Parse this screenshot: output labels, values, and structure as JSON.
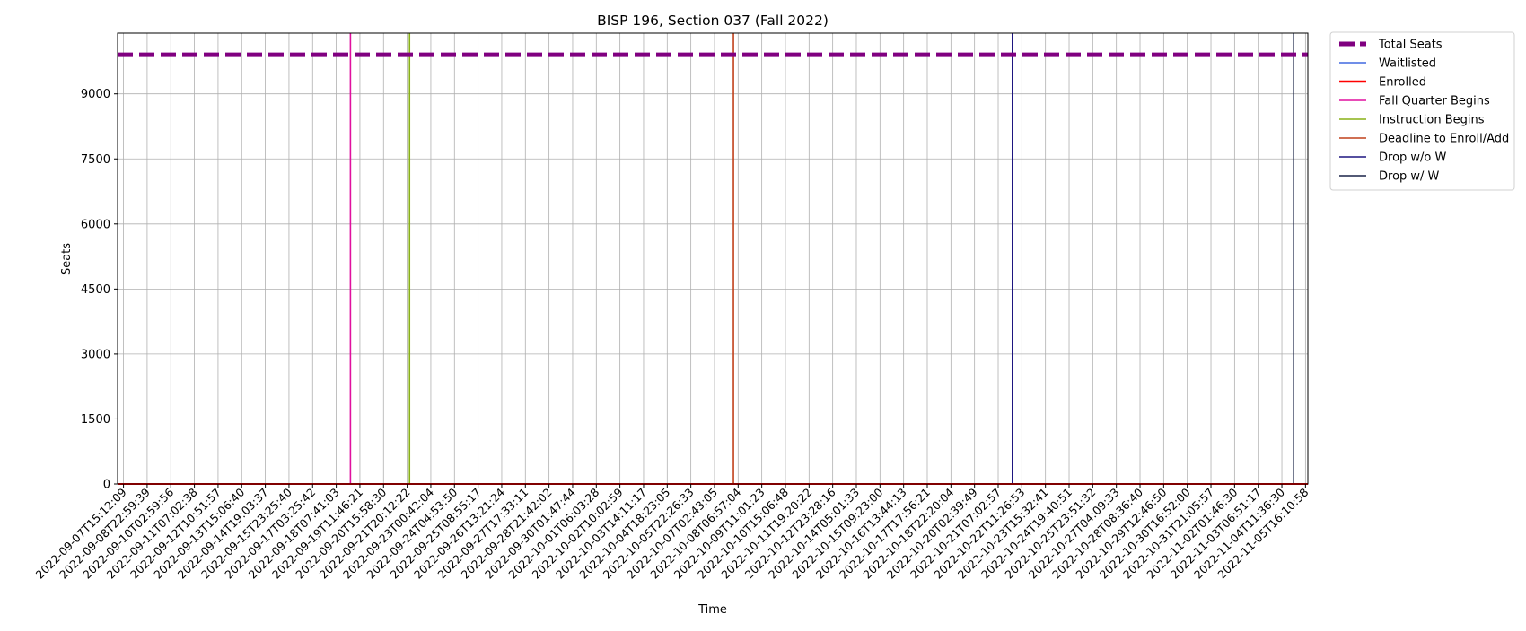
{
  "chart_data": {
    "type": "line",
    "title": "BISP 196, Section 037 (Fall 2022)",
    "xlabel": "Time",
    "ylabel": "Seats",
    "ylim": [
      0,
      10400
    ],
    "yticks": [
      0,
      1500,
      3000,
      4500,
      6000,
      7500,
      9000
    ],
    "grid": true,
    "legend_position": "outside-top-right",
    "x_tick_labels": [
      "2022-09-07T15:12:09",
      "2022-09-08T22:59:39",
      "2022-09-10T02:59:56",
      "2022-09-11T07:02:38",
      "2022-09-12T10:51:57",
      "2022-09-13T15:06:40",
      "2022-09-14T19:03:37",
      "2022-09-15T23:25:40",
      "2022-09-17T03:25:42",
      "2022-09-18T07:41:03",
      "2022-09-19T11:46:21",
      "2022-09-20T15:58:30",
      "2022-09-21T20:12:22",
      "2022-09-23T00:42:04",
      "2022-09-24T04:53:50",
      "2022-09-25T08:55:17",
      "2022-09-26T13:21:24",
      "2022-09-27T17:33:11",
      "2022-09-28T21:42:02",
      "2022-09-30T01:47:44",
      "2022-10-01T06:03:28",
      "2022-10-02T10:02:59",
      "2022-10-03T14:11:17",
      "2022-10-04T18:23:05",
      "2022-10-05T22:26:33",
      "2022-10-07T02:43:05",
      "2022-10-08T06:57:04",
      "2022-10-09T11:01:23",
      "2022-10-10T15:06:48",
      "2022-10-11T19:20:22",
      "2022-10-12T23:28:16",
      "2022-10-14T05:01:33",
      "2022-10-15T09:23:00",
      "2022-10-16T13:44:13",
      "2022-10-17T17:56:21",
      "2022-10-18T22:20:04",
      "2022-10-20T02:39:49",
      "2022-10-21T07:02:57",
      "2022-10-22T11:26:53",
      "2022-10-23T15:32:41",
      "2022-10-24T19:40:51",
      "2022-10-25T23:51:32",
      "2022-10-27T04:09:33",
      "2022-10-28T08:36:40",
      "2022-10-29T12:46:50",
      "2022-10-30T16:52:00",
      "2022-10-31T21:05:57",
      "2022-11-02T01:46:30",
      "2022-11-03T06:51:17",
      "2022-11-04T11:36:30",
      "2022-11-05T16:10:58"
    ],
    "x_range": [
      -0.25,
      50.1
    ],
    "series": [
      {
        "name": "Total Seats",
        "color": "#800080",
        "style": "dashed",
        "values": [
          {
            "x": -0.25,
            "y": 9900
          },
          {
            "x": 50.1,
            "y": 9900
          }
        ]
      },
      {
        "name": "Waitlisted",
        "color": "#4169e1",
        "style": "solid",
        "values": [
          {
            "x": -0.25,
            "y": 0
          },
          {
            "x": 50.1,
            "y": 0
          }
        ]
      },
      {
        "name": "Enrolled",
        "color": "#ff0000",
        "style": "solid",
        "values": [
          {
            "x": -0.25,
            "y": 0
          },
          {
            "x": 50.1,
            "y": 0
          }
        ]
      }
    ],
    "event_lines": [
      {
        "name": "Fall Quarter Begins",
        "color": "#e0109f",
        "x": 9.6
      },
      {
        "name": "Instruction Begins",
        "color": "#88b016",
        "x": 12.1
      },
      {
        "name": "Deadline to Enroll/Add",
        "color": "#c0401a",
        "x": 25.8
      },
      {
        "name": "Drop w/o W",
        "color": "#1e1680",
        "x": 37.6
      },
      {
        "name": "Drop w/ W",
        "color": "#1a2448",
        "x": 49.5
      }
    ]
  }
}
